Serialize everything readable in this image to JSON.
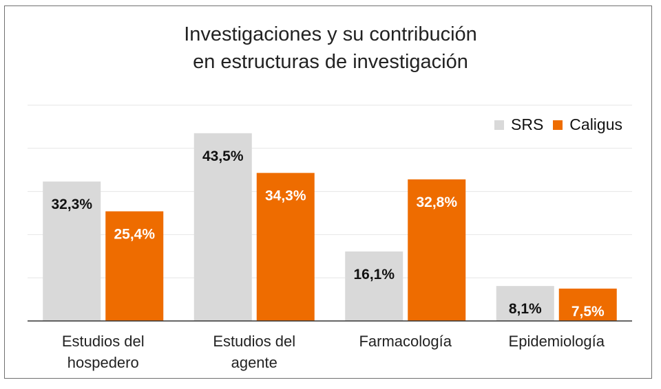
{
  "chart_data": {
    "type": "bar",
    "title_lines": [
      "Investigaciones y su contribución",
      "en estructuras de investigación"
    ],
    "categories": [
      [
        "Estudios del",
        "hospedero"
      ],
      [
        "Estudios del",
        "agente"
      ],
      [
        "Farmacología"
      ],
      [
        "Epidemiología"
      ]
    ],
    "series": [
      {
        "name": "SRS",
        "color": "#d9d9d9",
        "label_color": "#111111",
        "values": [
          32.3,
          43.5,
          16.1,
          8.1
        ],
        "labels": [
          "32,3%",
          "43,5%",
          "16,1%",
          "8,1%"
        ]
      },
      {
        "name": "Caligus",
        "color": "#ee6c00",
        "label_color": "#ffffff",
        "values": [
          25.4,
          34.3,
          32.8,
          7.5
        ],
        "labels": [
          "25,4%",
          "34,3%",
          "32,8%",
          "7,5%"
        ]
      }
    ],
    "ylim": [
      0,
      50
    ],
    "grid": true,
    "legend_position": "top-right"
  }
}
